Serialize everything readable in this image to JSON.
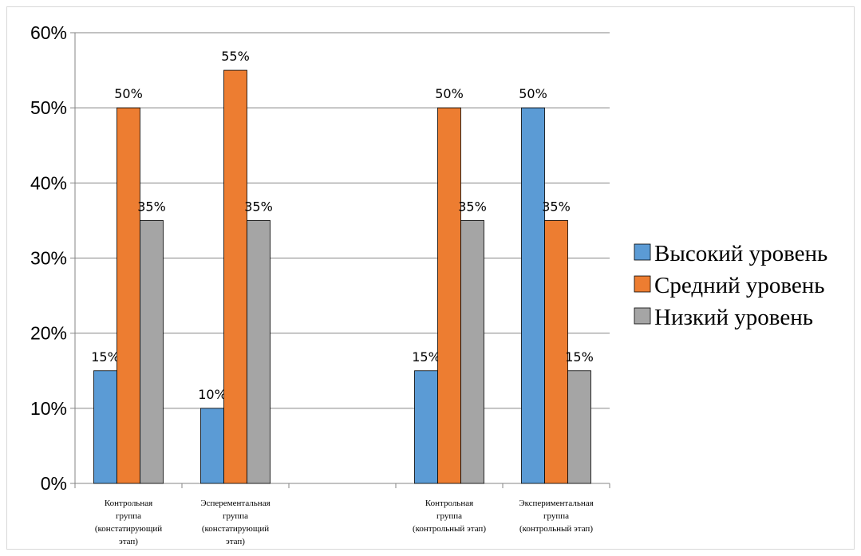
{
  "chart_data": {
    "type": "bar",
    "categories": [
      [
        "Контрольная",
        "группа",
        "(констатирующий",
        "этап)"
      ],
      [
        "Эсперементальная",
        "группа",
        "(констатирующий",
        "этап)"
      ],
      [],
      [
        "Контрольная",
        "группа",
        "(контрольный этап)"
      ],
      [
        "Экспериментальная",
        "группа",
        "(контрольный этап)"
      ]
    ],
    "series": [
      {
        "name": "Высокий уровень",
        "color": "#5b9bd5",
        "values": [
          15,
          10,
          null,
          15,
          50
        ]
      },
      {
        "name": "Средний уровень",
        "color": "#ed7d31",
        "values": [
          50,
          55,
          null,
          50,
          35
        ]
      },
      {
        "name": "Низкий уровень",
        "color": "#a5a5a5",
        "values": [
          35,
          35,
          null,
          35,
          15
        ]
      }
    ],
    "data_labels": [
      [
        "15%",
        "10%",
        null,
        "15%",
        "50%"
      ],
      [
        "50%",
        "55%",
        null,
        "50%",
        "35%"
      ],
      [
        "35%",
        "35%",
        null,
        "35%",
        "15%"
      ]
    ],
    "yticks": [
      "0%",
      "10%",
      "20%",
      "30%",
      "40%",
      "50%",
      "60%"
    ],
    "ylim": [
      0,
      60
    ],
    "grid": true,
    "legend_position": "right",
    "title": "",
    "xlabel": "",
    "ylabel": ""
  }
}
